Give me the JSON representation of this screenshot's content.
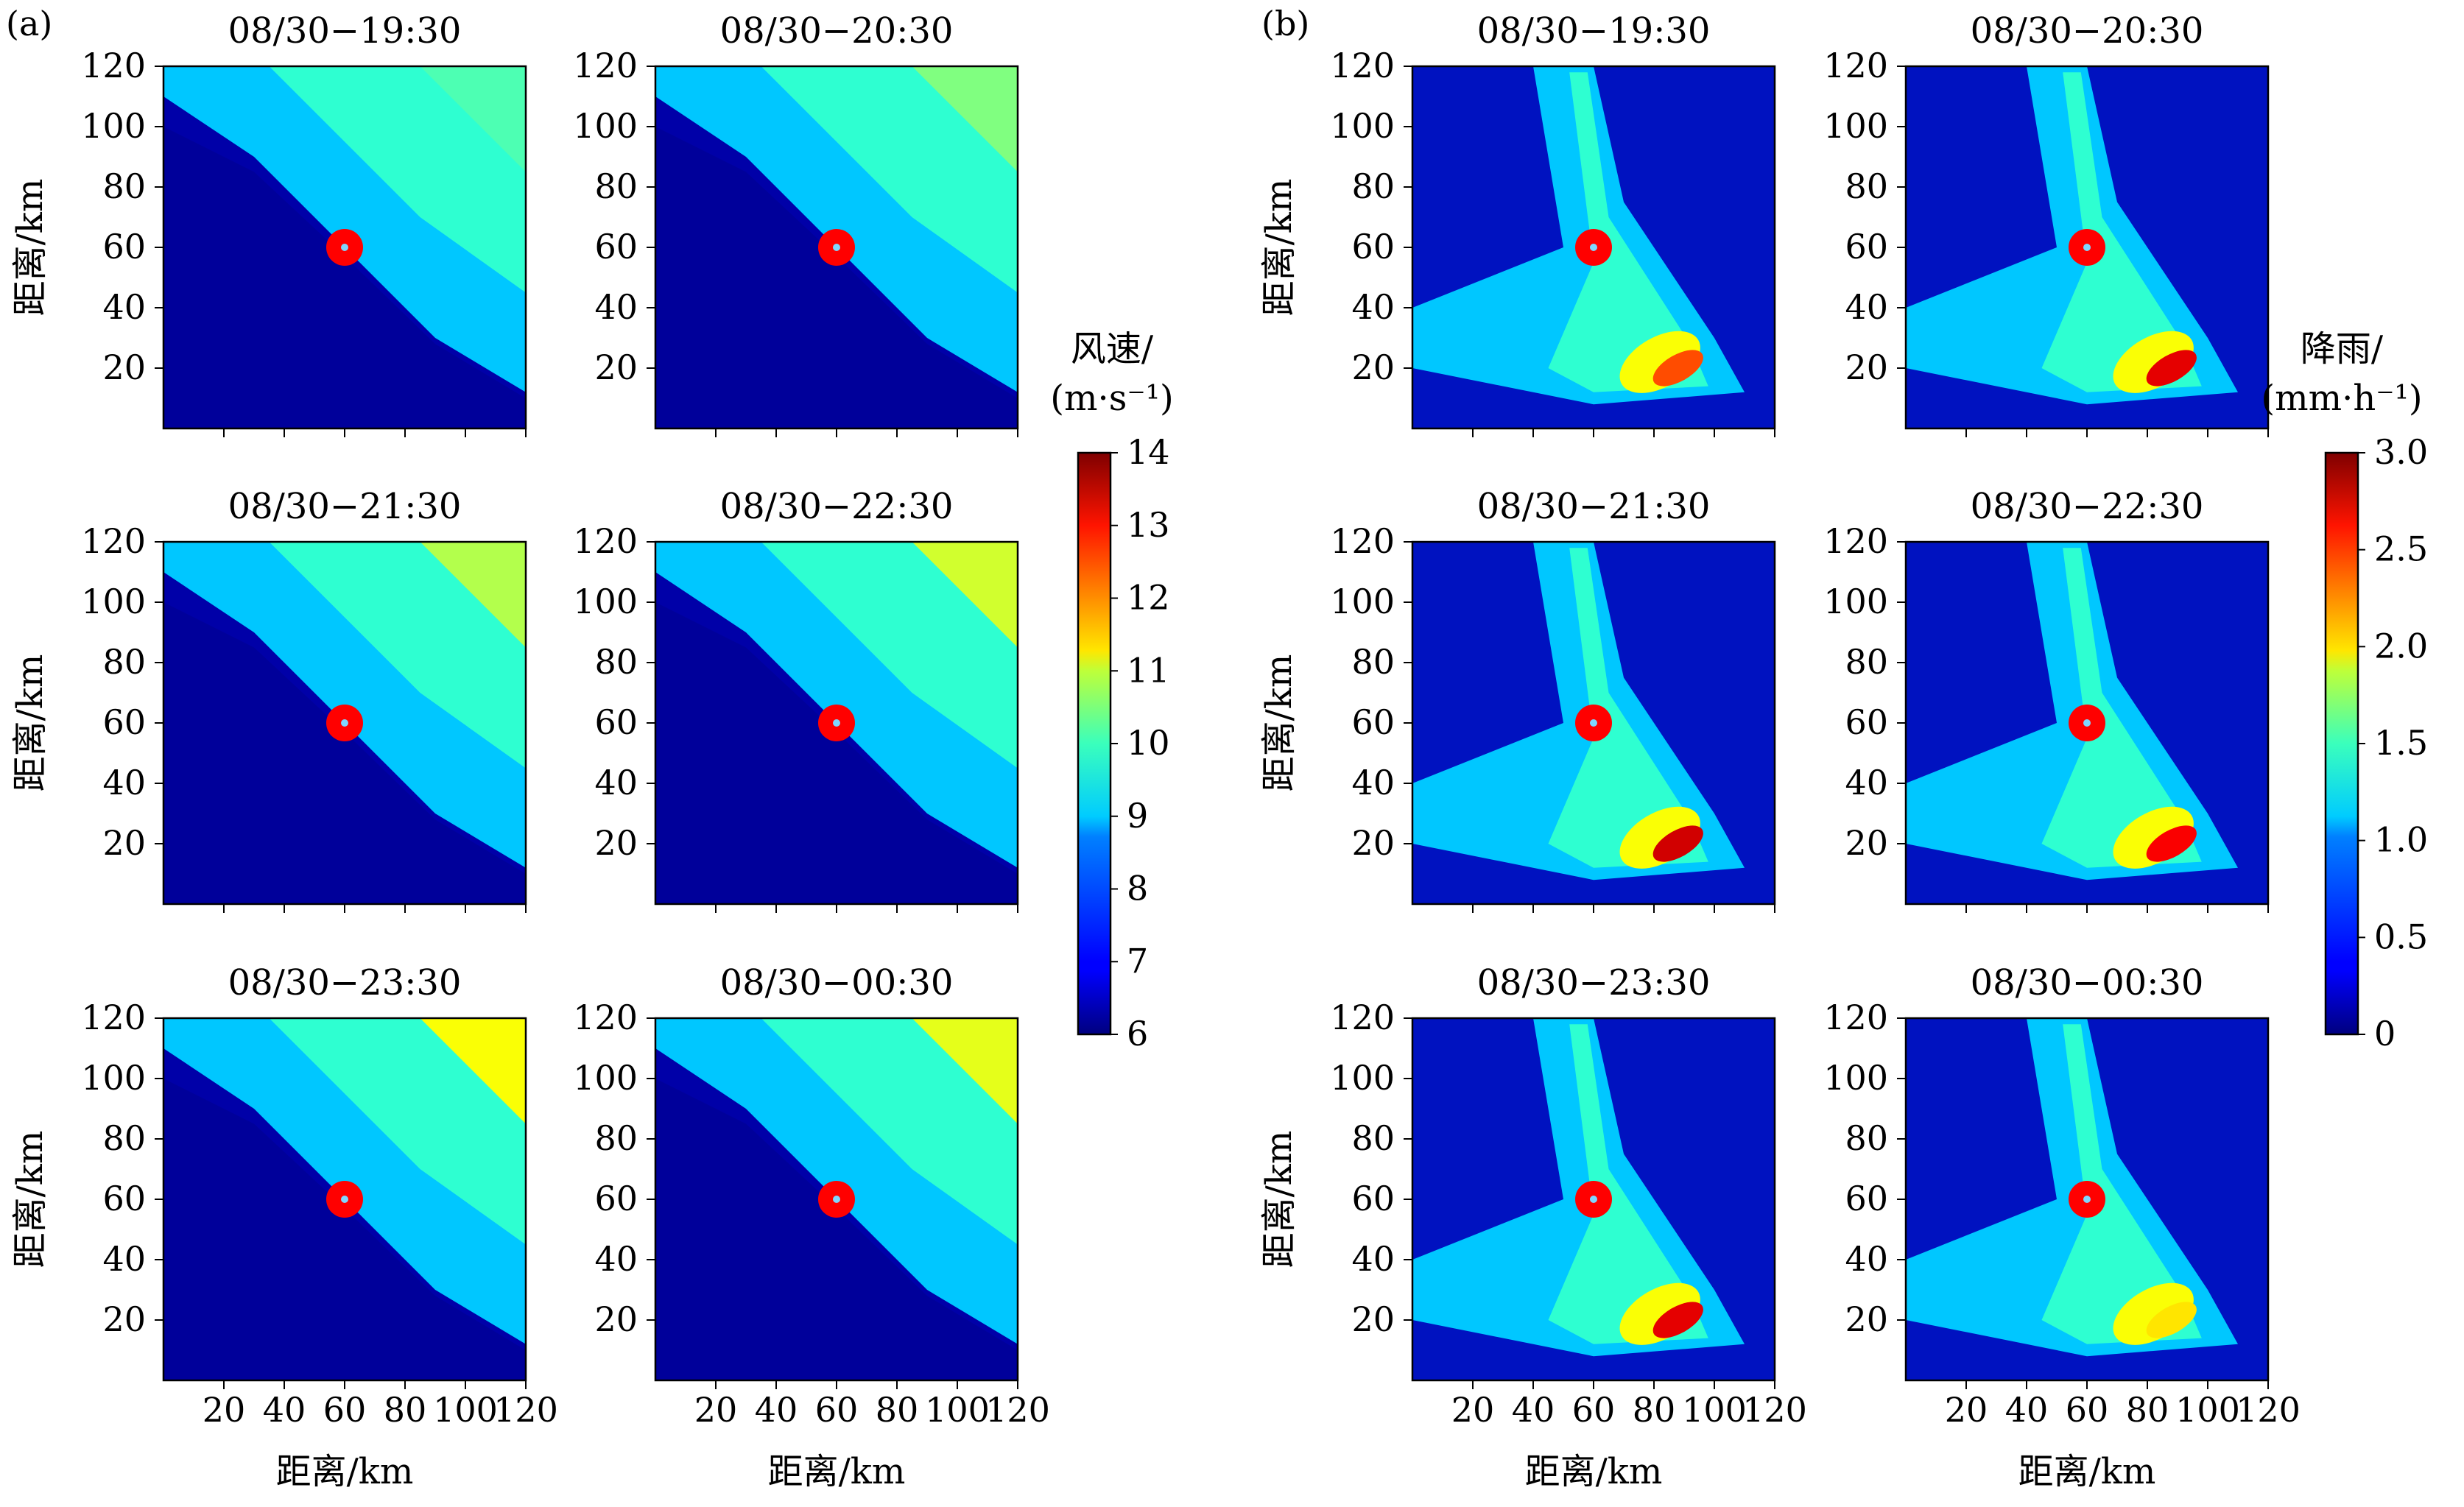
{
  "panel_labels": [
    "(a)",
    "(b)"
  ],
  "chart_data": [
    {
      "type": "heatmap",
      "panel": "(a)",
      "variable": "wind speed",
      "subplot_titles": [
        "08/30−19:30",
        "08/30−20:30",
        "08/30−21:30",
        "08/30−22:30",
        "08/30−23:30",
        "08/30−00:30"
      ],
      "xlabel": "距离/km",
      "ylabel": "距离/km",
      "xlim": [
        0,
        120
      ],
      "ylim": [
        0,
        120
      ],
      "xticks": [
        20,
        40,
        60,
        80,
        100,
        120
      ],
      "yticks": [
        20,
        40,
        60,
        80,
        100,
        120
      ],
      "colorbar": {
        "label_line1": "风速/",
        "label_line2": "(m·s⁻¹)",
        "range": [
          6,
          14
        ],
        "ticks": [
          "6",
          "7",
          "8",
          "9",
          "10",
          "11",
          "12",
          "13",
          "14"
        ]
      },
      "marker": {
        "x": 60,
        "y": 60,
        "color": "#ff0000"
      }
    },
    {
      "type": "heatmap",
      "panel": "(b)",
      "variable": "rainfall",
      "subplot_titles": [
        "08/30−19:30",
        "08/30−20:30",
        "08/30−21:30",
        "08/30−22:30",
        "08/30−23:30",
        "08/30−00:30"
      ],
      "xlabel": "距离/km",
      "ylabel": "距离/km",
      "xlim": [
        0,
        120
      ],
      "ylim": [
        0,
        120
      ],
      "xticks": [
        20,
        40,
        60,
        80,
        100,
        120
      ],
      "yticks": [
        20,
        40,
        60,
        80,
        100,
        120
      ],
      "colorbar": {
        "label_line1": "降雨/",
        "label_line2": "(mm·h⁻¹)",
        "range": [
          0,
          3.0
        ],
        "ticks": [
          "0",
          "0.5",
          "1.0",
          "1.5",
          "2.0",
          "2.5",
          "3.0"
        ]
      },
      "marker": {
        "x": 60,
        "y": 60,
        "color": "#ff0000"
      }
    }
  ]
}
